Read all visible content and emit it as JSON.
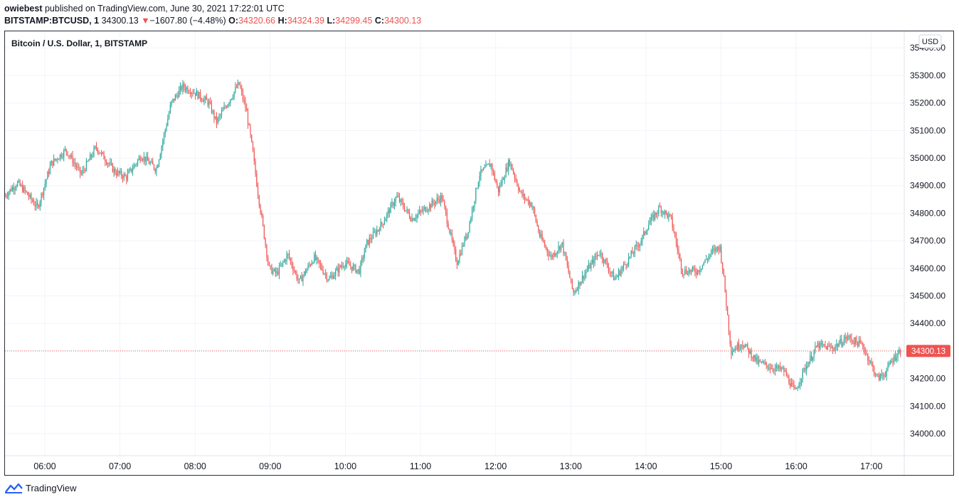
{
  "header": {
    "author": "owiebest",
    "published_text": "published on TradingView.com, June 30, 2021 17:22:01 UTC",
    "symbol_line": "BITSTAMP:BTCUSD, 1",
    "last_price": "34300.13",
    "change_arrow": "▼",
    "change": "−1607.80 (−4.48%)",
    "o_label": "O:",
    "o_value": "34320.66",
    "h_label": "H:",
    "h_value": "34324.39",
    "l_label": "L:",
    "l_value": "34299.45",
    "c_label": "C:",
    "c_value": "34300.13"
  },
  "footer": {
    "brand": "TradingView"
  },
  "colors": {
    "up": "#26a69a",
    "down": "#ef5350",
    "grid": "#f0f3fa",
    "axis": "#131722"
  },
  "chart_data": {
    "type": "candlestick",
    "title": "Bitcoin / U.S. Dollar, 1, BITSTAMP",
    "currency": "USD",
    "last_price": 34300.13,
    "last_price_label": "34300.13",
    "ylim": [
      33920,
      35460
    ],
    "x_range_hours": [
      5.47,
      17.4
    ],
    "y_ticks": [
      34000,
      34100,
      34200,
      34300,
      34400,
      34500,
      34600,
      34700,
      34800,
      34900,
      35000,
      35100,
      35200,
      35300,
      35400
    ],
    "y_tick_labels": [
      "34000.00",
      "34100.00",
      "34200.00",
      "34300.00",
      "34400.00",
      "34500.00",
      "34600.00",
      "34700.00",
      "34800.00",
      "34900.00",
      "35000.00",
      "35100.00",
      "35200.00",
      "35300.00",
      "35400.00"
    ],
    "x_ticks": [
      "06:00",
      "07:00",
      "08:00",
      "09:00",
      "10:00",
      "11:00",
      "12:00",
      "13:00",
      "14:00",
      "15:00",
      "16:00",
      "17:00"
    ],
    "x_tick_hours": [
      6,
      7,
      8,
      9,
      10,
      11,
      12,
      13,
      14,
      15,
      16,
      17
    ],
    "price_path_hours": [
      5.47,
      5.65,
      5.75,
      5.92,
      6.1,
      6.3,
      6.5,
      6.7,
      6.95,
      7.1,
      7.3,
      7.5,
      7.7,
      7.85,
      8.0,
      8.2,
      8.3,
      8.45,
      8.6,
      8.7,
      8.78,
      8.85,
      9.0,
      9.1,
      9.25,
      9.4,
      9.6,
      9.8,
      10.0,
      10.2,
      10.3,
      10.5,
      10.7,
      10.9,
      11.1,
      11.3,
      11.5,
      11.65,
      11.8,
      11.95,
      12.05,
      12.2,
      12.35,
      12.5,
      12.6,
      12.75,
      12.9,
      13.05,
      13.2,
      13.4,
      13.6,
      13.8,
      13.95,
      14.05,
      14.2,
      14.35,
      14.5,
      14.7,
      14.9,
      15.0,
      15.05,
      15.15,
      15.3,
      15.5,
      15.7,
      15.85,
      16.0,
      16.1,
      16.3,
      16.5,
      16.7,
      16.9,
      17.0,
      17.1,
      17.2,
      17.3,
      17.4
    ],
    "price_path_values": [
      34860,
      34910,
      34880,
      34820,
      34980,
      35030,
      34940,
      35040,
      34950,
      34930,
      35010,
      34960,
      35200,
      35260,
      35240,
      35200,
      35130,
      35200,
      35270,
      35170,
      35030,
      34880,
      34600,
      34580,
      34650,
      34550,
      34640,
      34560,
      34620,
      34590,
      34690,
      34760,
      34860,
      34780,
      34820,
      34860,
      34620,
      34740,
      34940,
      34980,
      34880,
      34990,
      34870,
      34830,
      34720,
      34640,
      34690,
      34510,
      34580,
      34660,
      34560,
      34640,
      34700,
      34760,
      34820,
      34780,
      34590,
      34590,
      34660,
      34680,
      34570,
      34300,
      34330,
      34260,
      34240,
      34230,
      34150,
      34220,
      34320,
      34310,
      34350,
      34320,
      34260,
      34200,
      34220,
      34270,
      34300
    ]
  }
}
